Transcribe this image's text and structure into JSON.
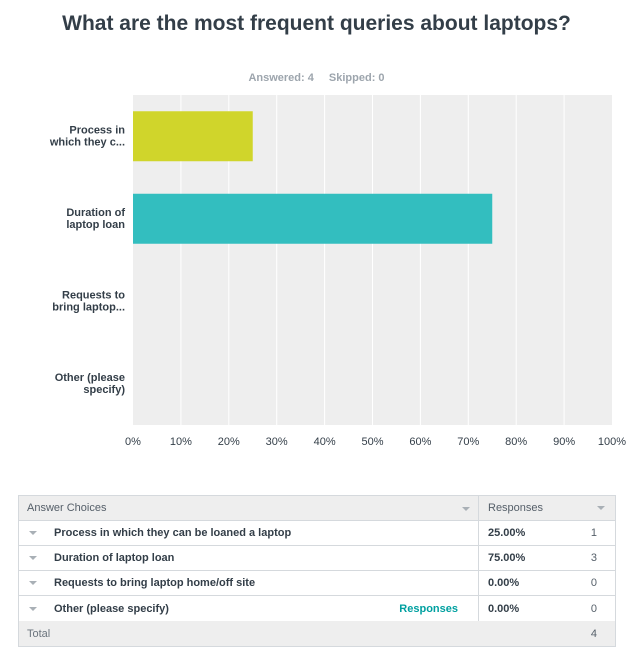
{
  "question": {
    "title": "What are the most frequent queries about laptops?",
    "answered": "Answered: 4",
    "skipped": "Skipped: 0"
  },
  "chart_data": {
    "type": "bar",
    "orientation": "horizontal",
    "categories": [
      "Process in which they c...",
      "Duration of laptop loan",
      "Requests to bring laptop...",
      "Other (please specify)"
    ],
    "category_lines": [
      [
        "Process in",
        "which they c..."
      ],
      [
        "Duration of",
        "laptop loan"
      ],
      [
        "Requests to",
        "bring laptop..."
      ],
      [
        "Other (please",
        "specify)"
      ]
    ],
    "values": [
      25,
      75,
      0,
      0
    ],
    "bar_colors": [
      "#d0d52b",
      "#33bebf",
      "#33bebf",
      "#33bebf"
    ],
    "xlim": [
      0,
      100
    ],
    "ticks": [
      "0%",
      "10%",
      "20%",
      "30%",
      "40%",
      "50%",
      "60%",
      "70%",
      "80%",
      "90%",
      "100%"
    ],
    "grid": true
  },
  "table": {
    "headers": {
      "choices": "Answer Choices",
      "responses": "Responses"
    },
    "rows": [
      {
        "choice": "Process in which they can be loaned a laptop",
        "percent": "25.00%",
        "count": "1",
        "link": ""
      },
      {
        "choice": "Duration of laptop loan",
        "percent": "75.00%",
        "count": "3",
        "link": ""
      },
      {
        "choice": "Requests to bring laptop home/off site",
        "percent": "0.00%",
        "count": "0",
        "link": ""
      },
      {
        "choice": "Other (please specify)",
        "percent": "0.00%",
        "count": "0",
        "link": "Responses"
      }
    ],
    "total_label": "Total",
    "total_count": "4"
  }
}
